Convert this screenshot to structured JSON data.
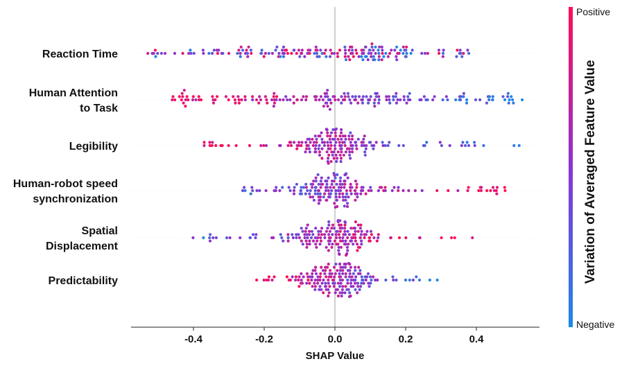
{
  "chart_data": {
    "type": "scatter",
    "subtype": "shap-beeswarm",
    "xlabel": "SHAP Value",
    "xlim": [
      -0.56,
      0.56
    ],
    "xticks": [
      -0.4,
      -0.2,
      0.0,
      0.2,
      0.4
    ],
    "xtick_labels": [
      "-0.4",
      "-0.2",
      "0.0",
      "0.2",
      "0.4"
    ],
    "features": [
      {
        "name": "Reaction Time",
        "lines": [
          "Reaction Time"
        ],
        "min": -0.53,
        "max": 0.38,
        "spread": 0.07,
        "mode": "wide",
        "n": 180,
        "high_side": "mixed"
      },
      {
        "name": "Human Attention to Task",
        "lines": [
          "Human Attention",
          "to Task"
        ],
        "min": -0.46,
        "max": 0.53,
        "spread": 0.07,
        "mode": "wide",
        "n": 180,
        "high_side": "negative"
      },
      {
        "name": "Legibility",
        "lines": [
          "Legibility"
        ],
        "min": -0.37,
        "max": 0.52,
        "spread": 0.06,
        "mode": "center",
        "n": 180,
        "high_side": "negative"
      },
      {
        "name": "Human-robot speed synchronization",
        "lines": [
          "Human-robot speed",
          "synchronization"
        ],
        "min": -0.26,
        "max": 0.48,
        "spread": 0.06,
        "mode": "center",
        "n": 180,
        "high_side": "positive"
      },
      {
        "name": "Spatial Displacement",
        "lines": [
          "Spatial",
          "Displacement"
        ],
        "min": -0.4,
        "max": 0.39,
        "spread": 0.07,
        "mode": "center",
        "n": 180,
        "high_side": "positive"
      },
      {
        "name": "Predictability",
        "lines": [
          "Predictability"
        ],
        "min": -0.22,
        "max": 0.29,
        "spread": 0.06,
        "mode": "center",
        "n": 180,
        "high_side": "negative"
      }
    ],
    "colorbar": {
      "title": "Variation of Averaged Feature Value",
      "top_label": "Positive",
      "bottom_label": "Negative",
      "high_color": "#ff0d57",
      "low_color": "#1e88e5"
    }
  }
}
